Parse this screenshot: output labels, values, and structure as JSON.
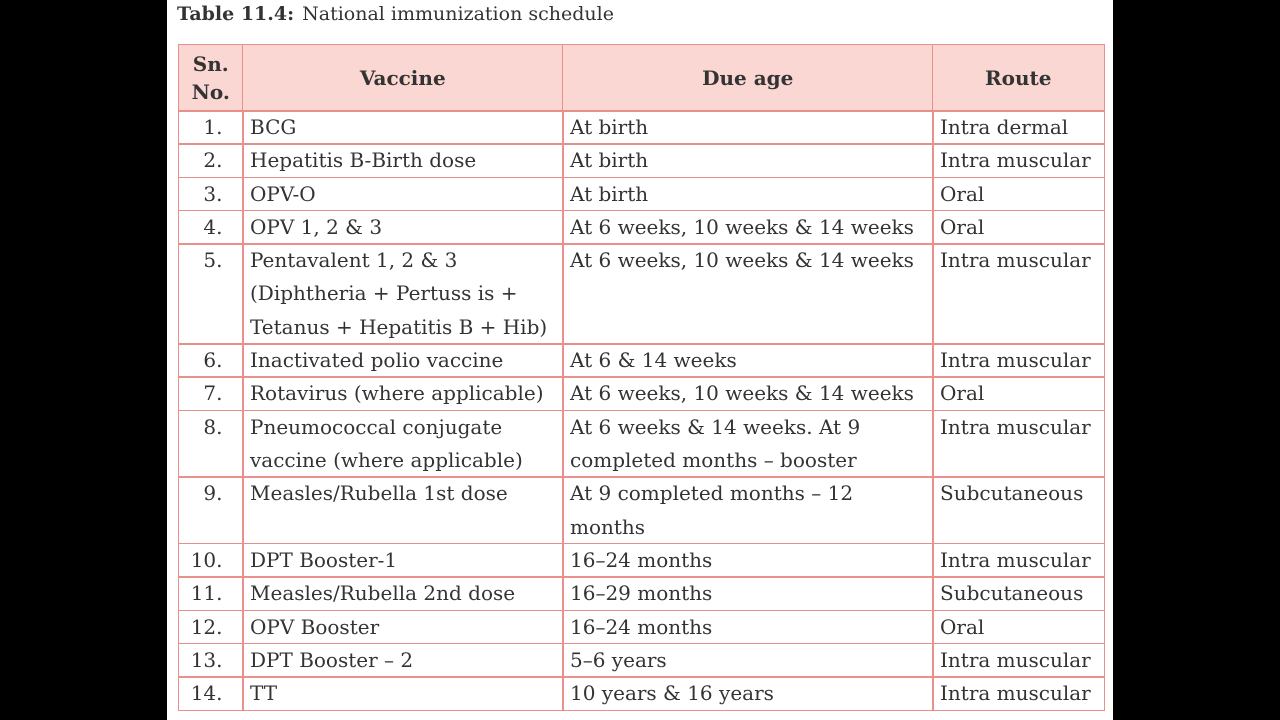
{
  "title": {
    "label": "Table 11.4:",
    "text": "National immunization schedule"
  },
  "table": {
    "header": [
      [
        "Sn.",
        "No."
      ],
      [
        "Vaccine"
      ],
      [
        "Due age"
      ],
      [
        "Route"
      ]
    ],
    "rows": [
      [
        [
          "1."
        ],
        [
          "BCG"
        ],
        [
          "At birth"
        ],
        [
          "Intra dermal"
        ]
      ],
      [
        [
          "2."
        ],
        [
          "Hepatitis B-Birth dose"
        ],
        [
          "At birth"
        ],
        [
          "Intra muscular"
        ]
      ],
      [
        [
          "3."
        ],
        [
          "OPV-O"
        ],
        [
          "At birth"
        ],
        [
          "Oral"
        ]
      ],
      [
        [
          "4."
        ],
        [
          "OPV 1, 2 & 3"
        ],
        [
          "At 6 weeks, 10 weeks & 14 weeks"
        ],
        [
          "Oral"
        ]
      ],
      [
        [
          "5."
        ],
        [
          "Pentavalent 1, 2 & 3",
          "(Diphtheria + Pertuss is +",
          "Tetanus + Hepatitis B + Hib)"
        ],
        [
          "At 6 weeks, 10 weeks & 14 weeks"
        ],
        [
          "Intra muscular"
        ]
      ],
      [
        [
          "6."
        ],
        [
          "Inactivated polio vaccine"
        ],
        [
          "At 6 & 14 weeks"
        ],
        [
          "Intra muscular"
        ]
      ],
      [
        [
          "7."
        ],
        [
          "Rotavirus (where applicable)"
        ],
        [
          "At 6 weeks, 10 weeks & 14 weeks"
        ],
        [
          "Oral"
        ]
      ],
      [
        [
          "8."
        ],
        [
          "Pneumococcal conjugate",
          "vaccine (where applicable)"
        ],
        [
          "At 6 weeks & 14 weeks. At 9",
          "completed months – booster"
        ],
        [
          "Intra muscular"
        ]
      ],
      [
        [
          "9."
        ],
        [
          "Measles/Rubella 1st dose"
        ],
        [
          "At 9 completed months – 12",
          "months"
        ],
        [
          "Subcutaneous"
        ]
      ],
      [
        [
          "10."
        ],
        [
          "DPT Booster-1"
        ],
        [
          "16–24 months"
        ],
        [
          "Intra muscular"
        ]
      ],
      [
        [
          "11."
        ],
        [
          "Measles/Rubella 2nd dose"
        ],
        [
          "16–29 months"
        ],
        [
          "Subcutaneous"
        ]
      ],
      [
        [
          "12."
        ],
        [
          "OPV Booster"
        ],
        [
          "16–24 months"
        ],
        [
          "Oral"
        ]
      ],
      [
        [
          "13."
        ],
        [
          "DPT Booster – 2"
        ],
        [
          "5–6 years"
        ],
        [
          "Intra muscular"
        ]
      ],
      [
        [
          "14."
        ],
        [
          "TT"
        ],
        [
          "10 years & 16 years"
        ],
        [
          "Intra muscular"
        ]
      ]
    ]
  }
}
